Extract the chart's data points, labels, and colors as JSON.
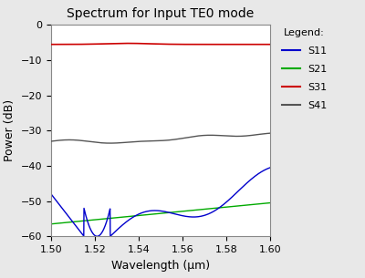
{
  "title": "Spectrum for Input TE0 mode",
  "xlabel": "Wavelength (μm)",
  "ylabel": "Power (dB)",
  "xlim": [
    1.5,
    1.6
  ],
  "ylim": [
    -60,
    0
  ],
  "yticks": [
    0,
    -10,
    -20,
    -30,
    -40,
    -50,
    -60
  ],
  "xticks": [
    1.5,
    1.52,
    1.54,
    1.56,
    1.58,
    1.6
  ],
  "legend_title": "Legend:",
  "legend_labels": [
    "S11",
    "S21",
    "S31",
    "S41"
  ],
  "line_colors": {
    "S11": "#0000cc",
    "S21": "#00aa00",
    "S31": "#cc0000",
    "S41": "#555555"
  },
  "background_color": "#e8e8e8",
  "plot_bg": "#ffffff",
  "title_fontsize": 10,
  "axis_fontsize": 9,
  "tick_fontsize": 8,
  "legend_fontsize": 8
}
